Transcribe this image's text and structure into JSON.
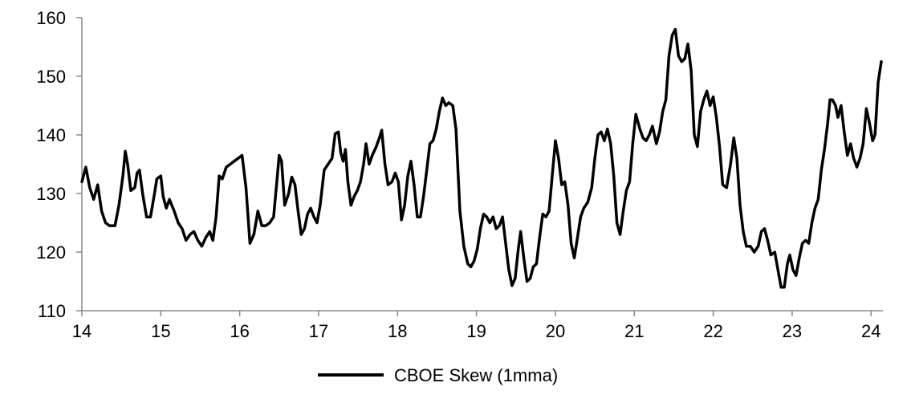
{
  "chart_data": {
    "type": "line",
    "title": "",
    "xlabel": "",
    "ylabel": "",
    "xlim": [
      14,
      24.15
    ],
    "ylim": [
      110,
      160
    ],
    "yticks": [
      110,
      120,
      130,
      140,
      150,
      160
    ],
    "xticks": [
      14,
      15,
      16,
      17,
      18,
      19,
      20,
      21,
      22,
      23,
      24
    ],
    "ytick_labels": [
      "110",
      "120",
      "130",
      "140",
      "150",
      "160"
    ],
    "xtick_labels": [
      "14",
      "15",
      "16",
      "17",
      "18",
      "19",
      "20",
      "21",
      "22",
      "23",
      "24"
    ],
    "grid": false,
    "legend_position": "bottom",
    "colors": {
      "line": "#000000",
      "axis": "#888888"
    },
    "series": [
      {
        "name": "CBOE Skew (1mma)",
        "points": [
          [
            14.0,
            132
          ],
          [
            14.05,
            134.5
          ],
          [
            14.1,
            131
          ],
          [
            14.15,
            129
          ],
          [
            14.2,
            131.5
          ],
          [
            14.25,
            127
          ],
          [
            14.3,
            125
          ],
          [
            14.35,
            124.5
          ],
          [
            14.42,
            124.5
          ],
          [
            14.47,
            128
          ],
          [
            14.52,
            133
          ],
          [
            14.55,
            137.2
          ],
          [
            14.58,
            135
          ],
          [
            14.62,
            130.5
          ],
          [
            14.67,
            131
          ],
          [
            14.7,
            133.5
          ],
          [
            14.73,
            134
          ],
          [
            14.77,
            130
          ],
          [
            14.82,
            126
          ],
          [
            14.87,
            126
          ],
          [
            14.92,
            130
          ],
          [
            14.95,
            132.5
          ],
          [
            15.0,
            133
          ],
          [
            15.03,
            129.5
          ],
          [
            15.07,
            127.5
          ],
          [
            15.11,
            129
          ],
          [
            15.17,
            127
          ],
          [
            15.22,
            125
          ],
          [
            15.27,
            124
          ],
          [
            15.32,
            122
          ],
          [
            15.37,
            123
          ],
          [
            15.42,
            123.5
          ],
          [
            15.47,
            122
          ],
          [
            15.52,
            121
          ],
          [
            15.57,
            122.5
          ],
          [
            15.62,
            123.5
          ],
          [
            15.66,
            122
          ],
          [
            15.7,
            126
          ],
          [
            15.74,
            133
          ],
          [
            15.78,
            132.5
          ],
          [
            15.83,
            134.5
          ],
          [
            15.88,
            135
          ],
          [
            15.93,
            135.5
          ],
          [
            15.98,
            136
          ],
          [
            16.03,
            136.5
          ],
          [
            16.08,
            131
          ],
          [
            16.13,
            121.5
          ],
          [
            16.18,
            123
          ],
          [
            16.23,
            127
          ],
          [
            16.28,
            124.5
          ],
          [
            16.33,
            124.5
          ],
          [
            16.38,
            125
          ],
          [
            16.43,
            126
          ],
          [
            16.47,
            132
          ],
          [
            16.5,
            136.5
          ],
          [
            16.53,
            135.5
          ],
          [
            16.57,
            128
          ],
          [
            16.62,
            130
          ],
          [
            16.66,
            132.8
          ],
          [
            16.7,
            131.5
          ],
          [
            16.74,
            127
          ],
          [
            16.78,
            123
          ],
          [
            16.82,
            124
          ],
          [
            16.86,
            126.5
          ],
          [
            16.9,
            127.5
          ],
          [
            16.94,
            126
          ],
          [
            16.98,
            125
          ],
          [
            17.02,
            128
          ],
          [
            17.07,
            134
          ],
          [
            17.12,
            135
          ],
          [
            17.17,
            136
          ],
          [
            17.21,
            140.2
          ],
          [
            17.25,
            140.5
          ],
          [
            17.28,
            137
          ],
          [
            17.31,
            135.5
          ],
          [
            17.34,
            137.5
          ],
          [
            17.37,
            132
          ],
          [
            17.41,
            128
          ],
          [
            17.45,
            129.5
          ],
          [
            17.49,
            130.5
          ],
          [
            17.53,
            132
          ],
          [
            17.57,
            135
          ],
          [
            17.6,
            138.5
          ],
          [
            17.64,
            135
          ],
          [
            17.68,
            136.5
          ],
          [
            17.73,
            138
          ],
          [
            17.77,
            139.5
          ],
          [
            17.8,
            140.8
          ],
          [
            17.84,
            135
          ],
          [
            17.88,
            131.5
          ],
          [
            17.93,
            132
          ],
          [
            17.97,
            133.5
          ],
          [
            18.01,
            132
          ],
          [
            18.05,
            125.5
          ],
          [
            18.09,
            128
          ],
          [
            18.13,
            133
          ],
          [
            18.17,
            135.5
          ],
          [
            18.21,
            131.5
          ],
          [
            18.25,
            126
          ],
          [
            18.29,
            126
          ],
          [
            18.33,
            129.5
          ],
          [
            18.37,
            134
          ],
          [
            18.41,
            138.5
          ],
          [
            18.45,
            139
          ],
          [
            18.49,
            141
          ],
          [
            18.53,
            144
          ],
          [
            18.57,
            146.3
          ],
          [
            18.61,
            145
          ],
          [
            18.65,
            145.5
          ],
          [
            18.7,
            145
          ],
          [
            18.74,
            141
          ],
          [
            18.79,
            127
          ],
          [
            18.84,
            121
          ],
          [
            18.89,
            118
          ],
          [
            18.93,
            117.5
          ],
          [
            18.97,
            118.5
          ],
          [
            19.01,
            120.5
          ],
          [
            19.05,
            124
          ],
          [
            19.09,
            126.5
          ],
          [
            19.13,
            126
          ],
          [
            19.17,
            125
          ],
          [
            19.21,
            126
          ],
          [
            19.25,
            124
          ],
          [
            19.29,
            124.5
          ],
          [
            19.33,
            126
          ],
          [
            19.37,
            121.5
          ],
          [
            19.41,
            117
          ],
          [
            19.45,
            114.3
          ],
          [
            19.49,
            115.5
          ],
          [
            19.53,
            120.5
          ],
          [
            19.56,
            123.5
          ],
          [
            19.6,
            119
          ],
          [
            19.64,
            115
          ],
          [
            19.68,
            115.5
          ],
          [
            19.72,
            117.5
          ],
          [
            19.76,
            118
          ],
          [
            19.8,
            122.5
          ],
          [
            19.84,
            126.5
          ],
          [
            19.88,
            126
          ],
          [
            19.92,
            127
          ],
          [
            19.96,
            133
          ],
          [
            20.0,
            139
          ],
          [
            20.04,
            136
          ],
          [
            20.08,
            131.5
          ],
          [
            20.12,
            132
          ],
          [
            20.16,
            128
          ],
          [
            20.2,
            121.5
          ],
          [
            20.24,
            119
          ],
          [
            20.28,
            122.5
          ],
          [
            20.32,
            126
          ],
          [
            20.36,
            127.5
          ],
          [
            20.41,
            128.5
          ],
          [
            20.46,
            131
          ],
          [
            20.5,
            136
          ],
          [
            20.54,
            140
          ],
          [
            20.58,
            140.5
          ],
          [
            20.62,
            139
          ],
          [
            20.66,
            141
          ],
          [
            20.7,
            138.5
          ],
          [
            20.74,
            133
          ],
          [
            20.78,
            125
          ],
          [
            20.82,
            123
          ],
          [
            20.86,
            127
          ],
          [
            20.9,
            130.5
          ],
          [
            20.94,
            132
          ],
          [
            20.98,
            138.5
          ],
          [
            21.02,
            143.5
          ],
          [
            21.07,
            141
          ],
          [
            21.11,
            139.5
          ],
          [
            21.15,
            139
          ],
          [
            21.19,
            140
          ],
          [
            21.23,
            141.5
          ],
          [
            21.28,
            138.5
          ],
          [
            21.32,
            140.5
          ],
          [
            21.36,
            144
          ],
          [
            21.4,
            146
          ],
          [
            21.44,
            153.5
          ],
          [
            21.48,
            157
          ],
          [
            21.52,
            158
          ],
          [
            21.56,
            153.5
          ],
          [
            21.6,
            152.5
          ],
          [
            21.64,
            153
          ],
          [
            21.68,
            155.5
          ],
          [
            21.72,
            151
          ],
          [
            21.76,
            140
          ],
          [
            21.8,
            138
          ],
          [
            21.84,
            144
          ],
          [
            21.88,
            146
          ],
          [
            21.92,
            147.5
          ],
          [
            21.96,
            145
          ],
          [
            22.0,
            146.5
          ],
          [
            22.04,
            143
          ],
          [
            22.08,
            138
          ],
          [
            22.12,
            131.5
          ],
          [
            22.17,
            131
          ],
          [
            22.22,
            135
          ],
          [
            22.26,
            139.5
          ],
          [
            22.3,
            136
          ],
          [
            22.34,
            128
          ],
          [
            22.38,
            123.5
          ],
          [
            22.42,
            121
          ],
          [
            22.47,
            121
          ],
          [
            22.52,
            120
          ],
          [
            22.57,
            121
          ],
          [
            22.61,
            123.5
          ],
          [
            22.65,
            124
          ],
          [
            22.69,
            122
          ],
          [
            22.73,
            119.5
          ],
          [
            22.78,
            120
          ],
          [
            22.82,
            117
          ],
          [
            22.86,
            114
          ],
          [
            22.9,
            114
          ],
          [
            22.94,
            118
          ],
          [
            22.97,
            119.5
          ],
          [
            23.01,
            117
          ],
          [
            23.05,
            116
          ],
          [
            23.09,
            119
          ],
          [
            23.13,
            121.5
          ],
          [
            23.17,
            122
          ],
          [
            23.21,
            121.5
          ],
          [
            23.25,
            125
          ],
          [
            23.29,
            127.5
          ],
          [
            23.33,
            129
          ],
          [
            23.37,
            134
          ],
          [
            23.41,
            137.5
          ],
          [
            23.45,
            142
          ],
          [
            23.48,
            146
          ],
          [
            23.51,
            146
          ],
          [
            23.55,
            145
          ],
          [
            23.58,
            143
          ],
          [
            23.62,
            145
          ],
          [
            23.66,
            140.5
          ],
          [
            23.7,
            136.5
          ],
          [
            23.74,
            138.5
          ],
          [
            23.78,
            136
          ],
          [
            23.82,
            134.5
          ],
          [
            23.86,
            136
          ],
          [
            23.9,
            138.5
          ],
          [
            23.94,
            144.5
          ],
          [
            23.98,
            142
          ],
          [
            24.02,
            139
          ],
          [
            24.05,
            140
          ],
          [
            24.09,
            149
          ],
          [
            24.13,
            152.5
          ]
        ]
      }
    ]
  }
}
